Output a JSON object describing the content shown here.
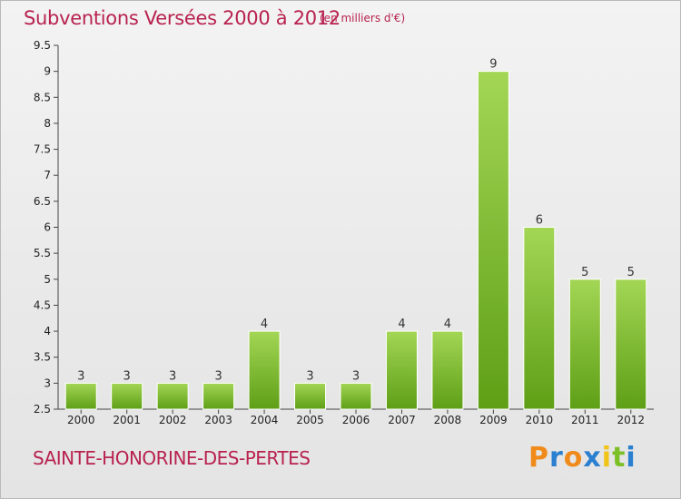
{
  "header": {
    "title": "Subventions Versées 2000 à 2012",
    "unit": "(en milliers d'€)"
  },
  "footer": {
    "place": "SAINTE-HONORINE-DES-PERTES",
    "logo": "Proxiti"
  },
  "colors": {
    "title": "#b8224f",
    "bar_light": "#9fd24a",
    "bar_dark": "#5c9e14",
    "logo_letters": [
      "#f08a1a",
      "#2a7fd0",
      "#f08a1a",
      "#2a7fd0",
      "#f0c419",
      "#7cbf27",
      "#2a7fd0"
    ]
  },
  "chart_data": {
    "type": "bar",
    "title": "Subventions Versées 2000 à 2012",
    "xlabel": "",
    "ylabel": "",
    "categories": [
      "2000",
      "2001",
      "2002",
      "2003",
      "2004",
      "2005",
      "2006",
      "2007",
      "2008",
      "2009",
      "2010",
      "2011",
      "2012"
    ],
    "values": [
      3,
      3,
      3,
      3,
      4,
      3,
      3,
      4,
      4,
      9,
      6,
      5,
      5
    ],
    "data_labels": [
      "3",
      "3",
      "3",
      "3",
      "4",
      "3",
      "3",
      "4",
      "4",
      "9",
      "6",
      "5",
      "5"
    ],
    "ylim": [
      2.5,
      9.5
    ],
    "yticks": [
      "2.5",
      "3",
      "3.5",
      "4",
      "4.5",
      "5",
      "5.5",
      "6",
      "6.5",
      "7",
      "7.5",
      "8",
      "8.5",
      "9",
      "9.5"
    ],
    "grid": false,
    "legend": "none"
  }
}
